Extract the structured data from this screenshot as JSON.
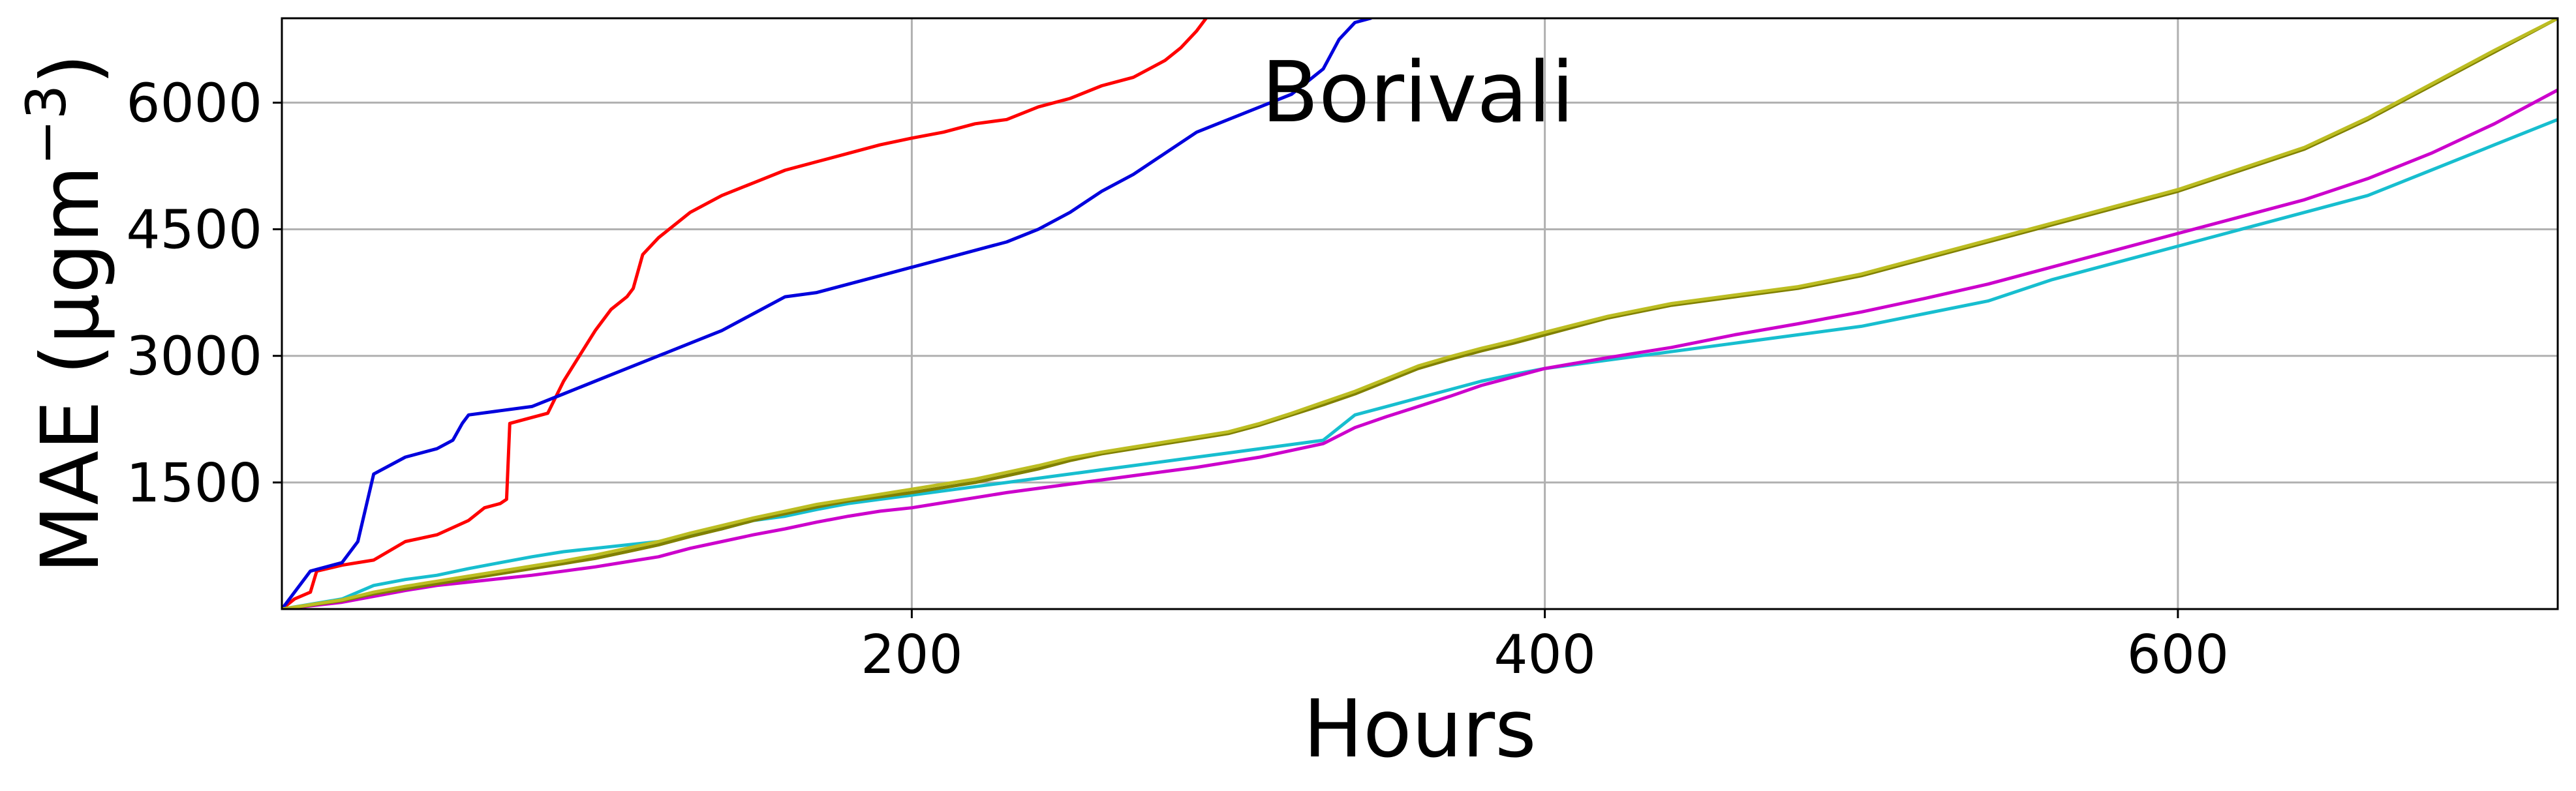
{
  "chart_data": {
    "type": "line",
    "title": "Borivali",
    "xlabel": "Hours",
    "ylabel": "MAE (μgm",
    "ylabel_superscript": "−3",
    "ylabel_close": ")",
    "xlim": [
      1,
      720
    ],
    "ylim": [
      0,
      7000
    ],
    "xticks": [
      200,
      400,
      600
    ],
    "yticks": [
      1500,
      3000,
      4500,
      6000
    ],
    "grid": true,
    "legend": "none",
    "series": [
      {
        "color": "#ff0000",
        "x": [
          1,
          5,
          10,
          12,
          20,
          30,
          40,
          50,
          60,
          65,
          70,
          72,
          73,
          80,
          85,
          90,
          95,
          100,
          105,
          110,
          112,
          115,
          120,
          130,
          140,
          150,
          160,
          170,
          180,
          190,
          200,
          210,
          220,
          230,
          240,
          250,
          260,
          270,
          280,
          285,
          290,
          293
        ],
        "y": [
          0,
          120,
          200,
          450,
          520,
          580,
          800,
          880,
          1050,
          1200,
          1250,
          1300,
          2200,
          2270,
          2320,
          2700,
          3000,
          3300,
          3550,
          3700,
          3800,
          4200,
          4400,
          4700,
          4900,
          5050,
          5200,
          5300,
          5400,
          5500,
          5580,
          5650,
          5750,
          5800,
          5950,
          6050,
          6200,
          6300,
          6500,
          6650,
          6850,
          7000
        ]
      },
      {
        "color": "#0000dd",
        "x": [
          1,
          5,
          10,
          15,
          20,
          25,
          30,
          35,
          40,
          50,
          55,
          58,
          60,
          70,
          80,
          90,
          100,
          110,
          120,
          130,
          140,
          150,
          160,
          170,
          180,
          190,
          200,
          210,
          220,
          230,
          240,
          250,
          260,
          270,
          280,
          290,
          300,
          310,
          320,
          330,
          335,
          340,
          345
        ],
        "y": [
          0,
          200,
          450,
          500,
          550,
          800,
          1600,
          1700,
          1800,
          1900,
          2000,
          2200,
          2300,
          2350,
          2400,
          2550,
          2700,
          2850,
          3000,
          3150,
          3300,
          3500,
          3700,
          3750,
          3850,
          3950,
          4050,
          4150,
          4250,
          4350,
          4500,
          4700,
          4950,
          5150,
          5400,
          5650,
          5800,
          5950,
          6100,
          6400,
          6750,
          6950,
          7000
        ]
      },
      {
        "color": "#17becf",
        "x": [
          1,
          20,
          30,
          40,
          50,
          60,
          70,
          80,
          90,
          100,
          110,
          120,
          130,
          140,
          150,
          160,
          170,
          180,
          190,
          200,
          210,
          220,
          230,
          240,
          250,
          260,
          270,
          280,
          290,
          300,
          310,
          320,
          330,
          340,
          350,
          360,
          370,
          380,
          390,
          400,
          420,
          440,
          460,
          480,
          500,
          520,
          540,
          560,
          580,
          600,
          620,
          640,
          660,
          680,
          700,
          720
        ],
        "y": [
          0,
          120,
          280,
          350,
          400,
          480,
          550,
          620,
          680,
          720,
          760,
          800,
          880,
          950,
          1050,
          1100,
          1180,
          1250,
          1300,
          1350,
          1400,
          1450,
          1500,
          1550,
          1600,
          1650,
          1700,
          1750,
          1800,
          1850,
          1900,
          1950,
          2000,
          2300,
          2400,
          2500,
          2600,
          2700,
          2780,
          2850,
          2950,
          3050,
          3150,
          3250,
          3350,
          3500,
          3650,
          3900,
          4100,
          4300,
          4500,
          4700,
          4900,
          5200,
          5500,
          5800
        ]
      },
      {
        "color": "#cc00cc",
        "x": [
          1,
          20,
          30,
          40,
          50,
          60,
          70,
          80,
          90,
          100,
          110,
          120,
          130,
          140,
          150,
          160,
          170,
          180,
          190,
          200,
          210,
          220,
          230,
          240,
          250,
          260,
          270,
          280,
          290,
          300,
          310,
          320,
          330,
          340,
          350,
          360,
          370,
          380,
          390,
          400,
          420,
          440,
          460,
          480,
          500,
          520,
          540,
          560,
          580,
          600,
          620,
          640,
          660,
          680,
          700,
          720
        ],
        "y": [
          0,
          80,
          150,
          220,
          280,
          320,
          360,
          400,
          450,
          500,
          560,
          620,
          720,
          800,
          880,
          950,
          1030,
          1100,
          1160,
          1200,
          1260,
          1320,
          1380,
          1430,
          1480,
          1530,
          1580,
          1630,
          1680,
          1740,
          1800,
          1880,
          1960,
          2150,
          2280,
          2400,
          2520,
          2650,
          2750,
          2850,
          2980,
          3100,
          3250,
          3380,
          3520,
          3680,
          3850,
          4050,
          4250,
          4450,
          4650,
          4850,
          5100,
          5400,
          5750,
          6150
        ]
      },
      {
        "color": "#808000",
        "x": [
          1,
          20,
          30,
          40,
          50,
          60,
          70,
          80,
          90,
          100,
          110,
          120,
          130,
          140,
          150,
          160,
          170,
          180,
          190,
          200,
          210,
          220,
          230,
          240,
          250,
          260,
          270,
          280,
          290,
          300,
          310,
          320,
          330,
          340,
          350,
          360,
          370,
          380,
          390,
          400,
          420,
          440,
          460,
          480,
          500,
          520,
          540,
          560,
          580,
          600,
          620,
          640,
          660,
          680,
          700,
          720
        ],
        "y": [
          0,
          100,
          180,
          240,
          300,
          360,
          420,
          480,
          540,
          600,
          680,
          760,
          860,
          950,
          1050,
          1130,
          1210,
          1280,
          1330,
          1380,
          1440,
          1500,
          1580,
          1660,
          1760,
          1840,
          1900,
          1960,
          2020,
          2080,
          2180,
          2300,
          2420,
          2550,
          2700,
          2850,
          2960,
          3060,
          3150,
          3250,
          3450,
          3600,
          3700,
          3800,
          3950,
          4150,
          4350,
          4550,
          4750,
          4950,
          5200,
          5450,
          5800,
          6200,
          6600,
          7000
        ]
      },
      {
        "color": "#bcbd22",
        "x": [
          1,
          20,
          30,
          40,
          50,
          60,
          70,
          80,
          90,
          100,
          110,
          120,
          130,
          140,
          150,
          160,
          170,
          180,
          190,
          200,
          210,
          220,
          230,
          240,
          250,
          260,
          270,
          280,
          290,
          300,
          310,
          320,
          330,
          340,
          350,
          360,
          370,
          380,
          390,
          400,
          420,
          440,
          460,
          480,
          500,
          520,
          540,
          560,
          580,
          600,
          620,
          640,
          660,
          680,
          700,
          720
        ],
        "y": [
          0,
          110,
          200,
          270,
          330,
          390,
          450,
          510,
          570,
          640,
          720,
          800,
          900,
          990,
          1080,
          1160,
          1240,
          1300,
          1360,
          1420,
          1480,
          1540,
          1620,
          1700,
          1790,
          1860,
          1920,
          1980,
          2040,
          2100,
          2200,
          2320,
          2450,
          2580,
          2730,
          2880,
          2990,
          3090,
          3180,
          3280,
          3470,
          3620,
          3720,
          3820,
          3970,
          4170,
          4370,
          4570,
          4770,
          4970,
          5220,
          5470,
          5820,
          6220,
          6620,
          7000
        ]
      }
    ]
  }
}
